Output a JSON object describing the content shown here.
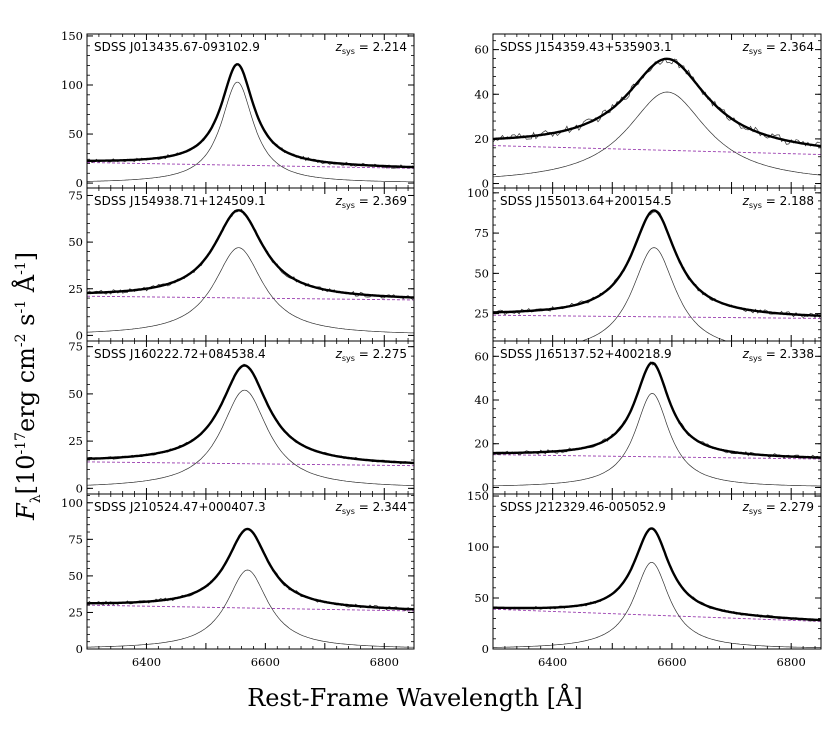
{
  "figure": {
    "xlabel": "Rest-Frame Wavelength [Å]",
    "ylabel": {
      "f": "F",
      "sub": "λ",
      "p1": "[10",
      "e1": "-17",
      "p2": "erg cm",
      "e2": "-2",
      "p3": " s",
      "e3": "-1",
      "p4": " Å",
      "e4": "-1",
      "p5": "]"
    }
  },
  "colors": {
    "fit": "#000000",
    "data": "#333333",
    "component": "#333333",
    "continuum": "#9b3fb0"
  },
  "chart_data": [
    {
      "type": "line",
      "object": "SDSS J013435.67-093102.9",
      "z_label": "2.214",
      "xlim": [
        6300,
        6850
      ],
      "ylim": [
        -5,
        152
      ],
      "yticks": [
        0,
        50,
        100,
        150
      ],
      "xticks": [
        6400,
        6600,
        6800
      ],
      "peak": {
        "center": 6553,
        "amplitude": 103,
        "width": 33
      },
      "continuum": [
        21,
        15
      ],
      "noise": 2.0
    },
    {
      "type": "line",
      "object": "SDSS J154359.43+535903.1",
      "z_label": "2.364",
      "xlim": [
        6300,
        6850
      ],
      "ylim": [
        -2,
        67
      ],
      "yticks": [
        0,
        20,
        40,
        60
      ],
      "xticks": [
        6400,
        6600,
        6800
      ],
      "peak": {
        "center": 6592,
        "amplitude": 41,
        "width": 82
      },
      "continuum": [
        17,
        13
      ],
      "noise": 1.8
    },
    {
      "type": "line",
      "object": "SDSS J154938.71+124509.1",
      "z_label": "2.369",
      "xlim": [
        6300,
        6850
      ],
      "ylim": [
        -3,
        79
      ],
      "yticks": [
        0,
        25,
        50,
        75
      ],
      "xticks": [
        6400,
        6600,
        6800
      ],
      "peak": {
        "center": 6555,
        "amplitude": 47,
        "width": 50
      },
      "continuum": [
        21,
        19
      ],
      "noise": 1.2
    },
    {
      "type": "line",
      "object": "SDSS J155013.64+200154.5",
      "z_label": "2.188",
      "xlim": [
        6300,
        6850
      ],
      "ylim": [
        8,
        103
      ],
      "yticks": [
        25,
        50,
        75,
        100
      ],
      "xticks": [
        6400,
        6600,
        6800
      ],
      "peak": {
        "center": 6570,
        "amplitude": 66,
        "width": 45
      },
      "continuum": [
        24,
        22
      ],
      "noise": 1.6
    },
    {
      "type": "line",
      "object": "SDSS J160222.72+084538.4",
      "z_label": "2.275",
      "xlim": [
        6300,
        6850
      ],
      "ylim": [
        -3,
        78
      ],
      "yticks": [
        0,
        25,
        50,
        75
      ],
      "xticks": [
        6400,
        6600,
        6800
      ],
      "peak": {
        "center": 6565,
        "amplitude": 52,
        "width": 48
      },
      "continuum": [
        14,
        12
      ],
      "noise": 0.8
    },
    {
      "type": "line",
      "object": "SDSS J165137.52+400218.9",
      "z_label": "2.338",
      "xlim": [
        6300,
        6850
      ],
      "ylim": [
        -3,
        67
      ],
      "yticks": [
        0,
        20,
        40,
        60
      ],
      "xticks": [
        6400,
        6600,
        6800
      ],
      "peak": {
        "center": 6567,
        "amplitude": 43,
        "width": 35
      },
      "continuum": [
        15,
        13
      ],
      "noise": 1.0
    },
    {
      "type": "line",
      "object": "SDSS J210524.47+000407.3",
      "z_label": "2.344",
      "xlim": [
        6300,
        6850
      ],
      "ylim": [
        0,
        106
      ],
      "yticks": [
        0,
        25,
        50,
        75,
        100
      ],
      "xticks": [
        6400,
        6600,
        6800
      ],
      "peak": {
        "center": 6570,
        "amplitude": 54,
        "width": 42
      },
      "continuum": [
        30,
        26
      ],
      "noise": 1.4
    },
    {
      "type": "line",
      "object": "SDSS J212329.46-005052.9",
      "z_label": "2.279",
      "xlim": [
        6300,
        6850
      ],
      "ylim": [
        0,
        152
      ],
      "yticks": [
        0,
        50,
        100,
        150
      ],
      "xticks": [
        6400,
        6600,
        6800
      ],
      "peak": {
        "center": 6566,
        "amplitude": 85,
        "width": 36
      },
      "continuum": [
        39,
        27
      ],
      "noise": 1.6
    }
  ]
}
